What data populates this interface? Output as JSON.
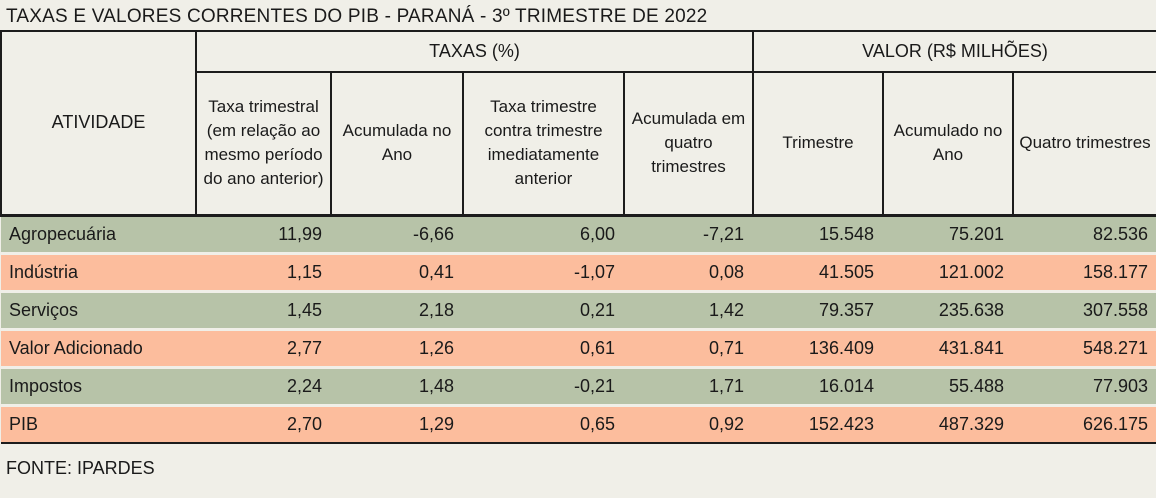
{
  "title": "TAXAS E VALORES CORRENTES DO PIB - PARANÁ - 3º TRIMESTRE DE 2022",
  "source": "FONTE: IPARDES",
  "colors": {
    "page-bg": "#f0efe8",
    "row-green": "#b7c3a8",
    "row-salmon": "#fcbd9d",
    "line": "#1c1c1c",
    "text": "#1a1a1a"
  },
  "table": {
    "activity_header": "ATIVIDADE",
    "group_taxas": "TAXAS (%)",
    "group_valor": "VALOR (R$ MILHÕES)",
    "subheaders": [
      "Taxa trimestral (em relação ao mesmo período do ano anterior)",
      "Acumulada no Ano",
      "Taxa trimestre contra trimestre imediatamente anterior",
      "Acumulada em quatro trimestres",
      "Trimestre",
      "Acumulado no Ano",
      "Quatro trimestres"
    ],
    "rows": [
      {
        "name": "Agropecuária",
        "values": [
          "11,99",
          "-6,66",
          "6,00",
          "-7,21",
          "15.548",
          "75.201",
          "82.536"
        ]
      },
      {
        "name": "Indústria",
        "values": [
          "1,15",
          "0,41",
          "-1,07",
          "0,08",
          "41.505",
          "121.002",
          "158.177"
        ]
      },
      {
        "name": "Serviços",
        "values": [
          "1,45",
          "2,18",
          "0,21",
          "1,42",
          "79.357",
          "235.638",
          "307.558"
        ]
      },
      {
        "name": "Valor Adicionado",
        "values": [
          "2,77",
          "1,26",
          "0,61",
          "0,71",
          "136.409",
          "431.841",
          "548.271"
        ]
      },
      {
        "name": "Impostos",
        "values": [
          "2,24",
          "1,48",
          "-0,21",
          "1,71",
          "16.014",
          "55.488",
          "77.903"
        ]
      },
      {
        "name": "PIB",
        "values": [
          "2,70",
          "1,29",
          "0,65",
          "0,92",
          "152.423",
          "487.329",
          "626.175"
        ]
      }
    ]
  },
  "chart_data": {
    "type": "table",
    "title": "TAXAS E VALORES CORRENTES DO PIB - PARANÁ - 3º TRIMESTRE DE 2022",
    "column_groups": [
      {
        "label": "TAXAS (%)",
        "span": [
          1,
          4
        ]
      },
      {
        "label": "VALOR (R$ MILHÕES)",
        "span": [
          5,
          7
        ]
      }
    ],
    "columns": [
      "ATIVIDADE",
      "Taxa trimestral (em relação ao mesmo período do ano anterior)",
      "Acumulada no Ano",
      "Taxa trimestre contra trimestre imediatamente anterior",
      "Acumulada em quatro trimestres",
      "Trimestre",
      "Acumulado no Ano",
      "Quatro trimestres"
    ],
    "rows": [
      [
        "Agropecuária",
        11.99,
        -6.66,
        6.0,
        -7.21,
        15548,
        75201,
        82536
      ],
      [
        "Indústria",
        1.15,
        0.41,
        -1.07,
        0.08,
        41505,
        121002,
        158177
      ],
      [
        "Serviços",
        1.45,
        2.18,
        0.21,
        1.42,
        79357,
        235638,
        307558
      ],
      [
        "Valor Adicionado",
        2.77,
        1.26,
        0.61,
        0.71,
        136409,
        431841,
        548271
      ],
      [
        "Impostos",
        2.24,
        1.48,
        -0.21,
        1.71,
        16014,
        55488,
        77903
      ],
      [
        "PIB",
        2.7,
        1.29,
        0.65,
        0.92,
        152423,
        487329,
        626175
      ]
    ],
    "number_format": "pt-BR (decimal comma, thousands dot)",
    "source": "FONTE: IPARDES"
  }
}
